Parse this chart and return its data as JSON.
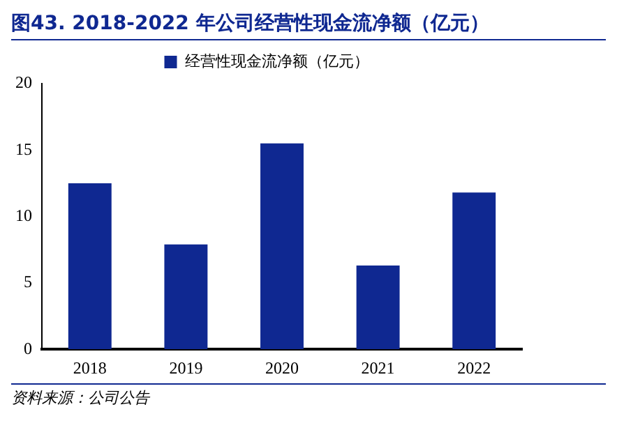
{
  "chart_data": {
    "type": "bar",
    "title": "图43. 2018-2022 年公司经营性现金流净额（亿元）",
    "categories": [
      "2018",
      "2019",
      "2020",
      "2021",
      "2022"
    ],
    "series": [
      {
        "name": "经营性现金流净额（亿元）",
        "color": "#0f2891",
        "values": [
          12.5,
          7.9,
          15.5,
          6.3,
          11.8
        ]
      }
    ],
    "ylim": [
      0,
      20
    ],
    "yticks": [
      0,
      5,
      10,
      15,
      20
    ],
    "grid": false,
    "legend": "top",
    "annotations": [
      "资料来源：公司公告"
    ]
  }
}
